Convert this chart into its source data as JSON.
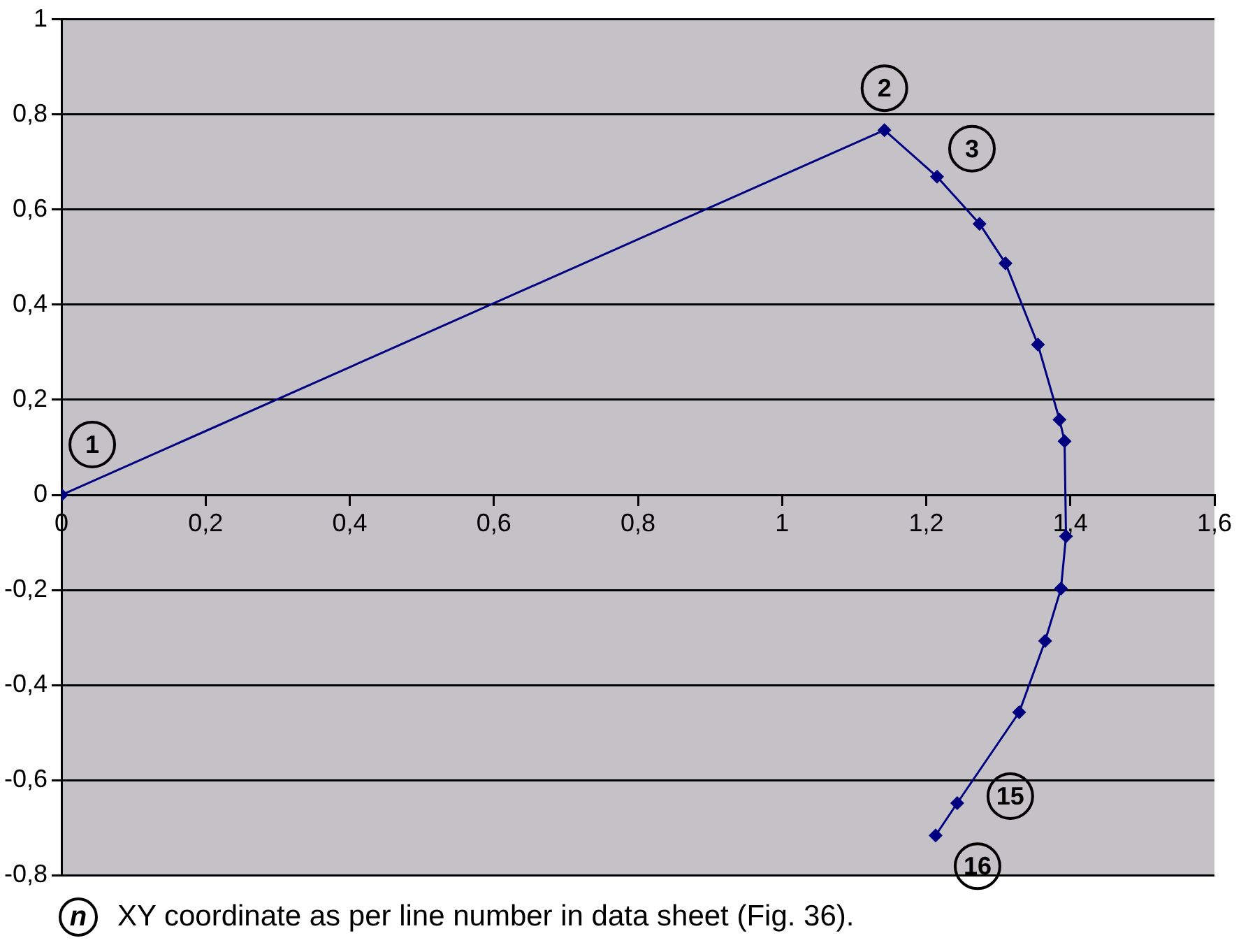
{
  "chart_data": {
    "type": "line",
    "x": [
      0,
      1.142,
      1.215,
      1.274,
      1.31,
      1.355,
      1.385,
      1.392,
      1.394,
      1.387,
      1.365,
      1.329,
      1.243,
      1.213
    ],
    "series": [
      {
        "color": "#000080",
        "values": [
          0,
          0.767,
          0.669,
          0.57,
          0.487,
          0.316,
          0.158,
          0.113,
          -0.087,
          -0.197,
          -0.307,
          -0.457,
          -0.648,
          -0.716
        ]
      }
    ],
    "xlim": [
      0,
      1.6
    ],
    "xticks": [
      0,
      {
        "value": 0.2,
        "label": "0,2"
      },
      {
        "value": 0.4,
        "label": "0,4"
      },
      {
        "value": 0.6,
        "label": "0,6"
      },
      {
        "value": 0.8,
        "label": "0,8"
      },
      1,
      {
        "value": 1.2,
        "label": "1,2"
      },
      {
        "value": 1.4,
        "label": "1,4"
      },
      {
        "value": 1.6,
        "label": "1,6"
      }
    ],
    "ylim": [
      -0.8,
      1
    ],
    "yticks": [
      {
        "value": -0.8,
        "label": "-0,8"
      },
      {
        "value": -0.6,
        "label": "-0,6"
      },
      {
        "value": -0.4,
        "label": "-0,4"
      },
      {
        "value": -0.2,
        "label": "-0,2"
      },
      0,
      {
        "value": 0.2,
        "label": "0,2"
      },
      {
        "value": 0.4,
        "label": "0,4"
      },
      {
        "value": 0.6,
        "label": "0,6"
      },
      {
        "value": 0.8,
        "label": "0,8"
      },
      1
    ],
    "grid": "y",
    "marker": "diamond",
    "line_style": "solid",
    "legend": false,
    "annotations": [
      {
        "text": "1",
        "x": 0,
        "y": 0
      },
      {
        "text": "2",
        "x": 1.142,
        "y": 0.767
      },
      {
        "text": "3",
        "x": 1.215,
        "y": 0.669
      },
      {
        "text": "15",
        "x": 1.243,
        "y": -0.648
      },
      {
        "text": "16",
        "x": 1.213,
        "y": -0.716
      },
      "n",
      "XY coordinate as per line number in data sheet (Fig. 36)."
    ]
  }
}
